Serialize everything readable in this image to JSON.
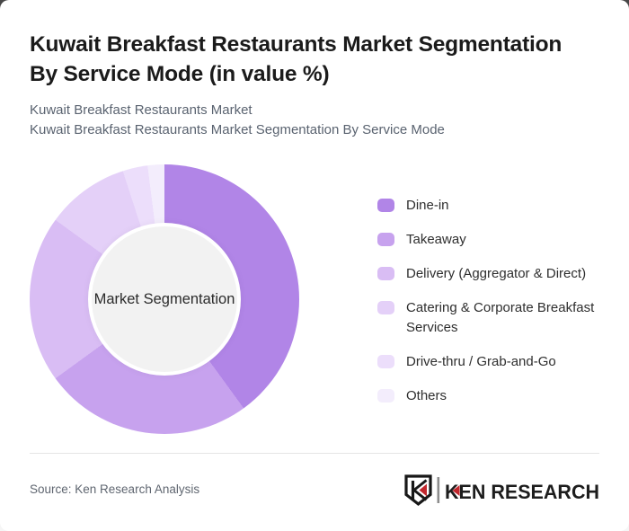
{
  "page": {
    "title_lines": {
      "line1": "Kuwait Breakfast Restaurants Market Segmentation",
      "line2": "By Service Mode (in value %)"
    },
    "subtitle_lines": {
      "line1": "Kuwait Breakfast Restaurants Market",
      "line2": "Kuwait Breakfast Restaurants Market Segmentation By Service Mode"
    }
  },
  "chart_data": {
    "type": "pie",
    "variant": "donut",
    "title": "Kuwait Breakfast Restaurants Market Segmentation By Service Mode (in value %)",
    "center_label": "Market Segmentation",
    "unit": "%",
    "legend_position": "right",
    "start_angle_deg": 0,
    "segments": [
      {
        "label": "Dine-in",
        "value": 40,
        "color": "#b185e7"
      },
      {
        "label": "Takeaway",
        "value": 25,
        "color": "#c7a2ee"
      },
      {
        "label": "Delivery (Aggregator & Direct)",
        "value": 20,
        "color": "#d9bdf4"
      },
      {
        "label": "Catering & Corporate Breakfast Services",
        "value": 10,
        "color": "#e4d0f8"
      },
      {
        "label": "Drive-thru / Grab-and-Go",
        "value": 3,
        "color": "#ecdefb"
      },
      {
        "label": "Others",
        "value": 2,
        "color": "#f3edfc"
      }
    ],
    "center_fill": "#f2f2f2",
    "center_ring": "#ffffff"
  },
  "footer": {
    "source_text": "Source: Ken Research Analysis",
    "logo_text": "KEN RESEARCH",
    "logo_emblem_letter": "K",
    "logo_accent_color": "#c1272d",
    "logo_text_color": "#1d1d1d"
  }
}
